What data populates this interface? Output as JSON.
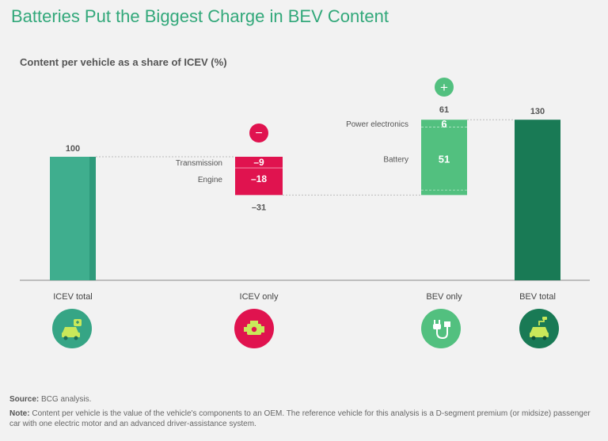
{
  "title": "Batteries Put the Biggest Charge in BEV Content",
  "chart_data": {
    "type": "waterfall",
    "title": "Content per vehicle as a share of ICEV (%)",
    "ylim": [
      0,
      130
    ],
    "bars": [
      {
        "id": "icev-total",
        "category": "ICEV total",
        "start": 0,
        "end": 100,
        "label": "100",
        "color": "#3fae8e",
        "shade": "#2f9a7b"
      },
      {
        "id": "icev-only",
        "category": "ICEV only",
        "start": 69,
        "end": 100,
        "label": "–31",
        "color": "#e0134f",
        "segments": [
          {
            "name": "Transmission",
            "value": -9,
            "label": "–9"
          },
          {
            "name": "Engine",
            "value": -18,
            "label": "–18"
          }
        ]
      },
      {
        "id": "bev-only",
        "category": "BEV only",
        "start": 69,
        "end": 130,
        "label": "61",
        "color": "#52c07f",
        "segments": [
          {
            "name": "Power electronics",
            "value": 6,
            "label": "6"
          },
          {
            "name": "Battery",
            "value": 51,
            "label": "51"
          }
        ]
      },
      {
        "id": "bev-total",
        "category": "BEV total",
        "start": 0,
        "end": 130,
        "label": "130",
        "color": "#197a55"
      }
    ],
    "badges": {
      "minus": "−",
      "plus": "+"
    }
  },
  "icons": [
    {
      "name": "icev-car-icon",
      "color": "#36a585"
    },
    {
      "name": "engine-icon",
      "color": "#e0134f"
    },
    {
      "name": "ev-plug-icon",
      "color": "#52c07f"
    },
    {
      "name": "ev-car-icon",
      "color": "#197a55"
    }
  ],
  "notes": {
    "source_label": "Source:",
    "source_text": " BCG analysis.",
    "note_label": "Note:",
    "note_text": " Content per vehicle is the value of the vehicle's components to an OEM. The reference vehicle for this analysis is a D-segment premium (or midsize) passenger car with one electric motor and an advanced driver-assistance system."
  }
}
